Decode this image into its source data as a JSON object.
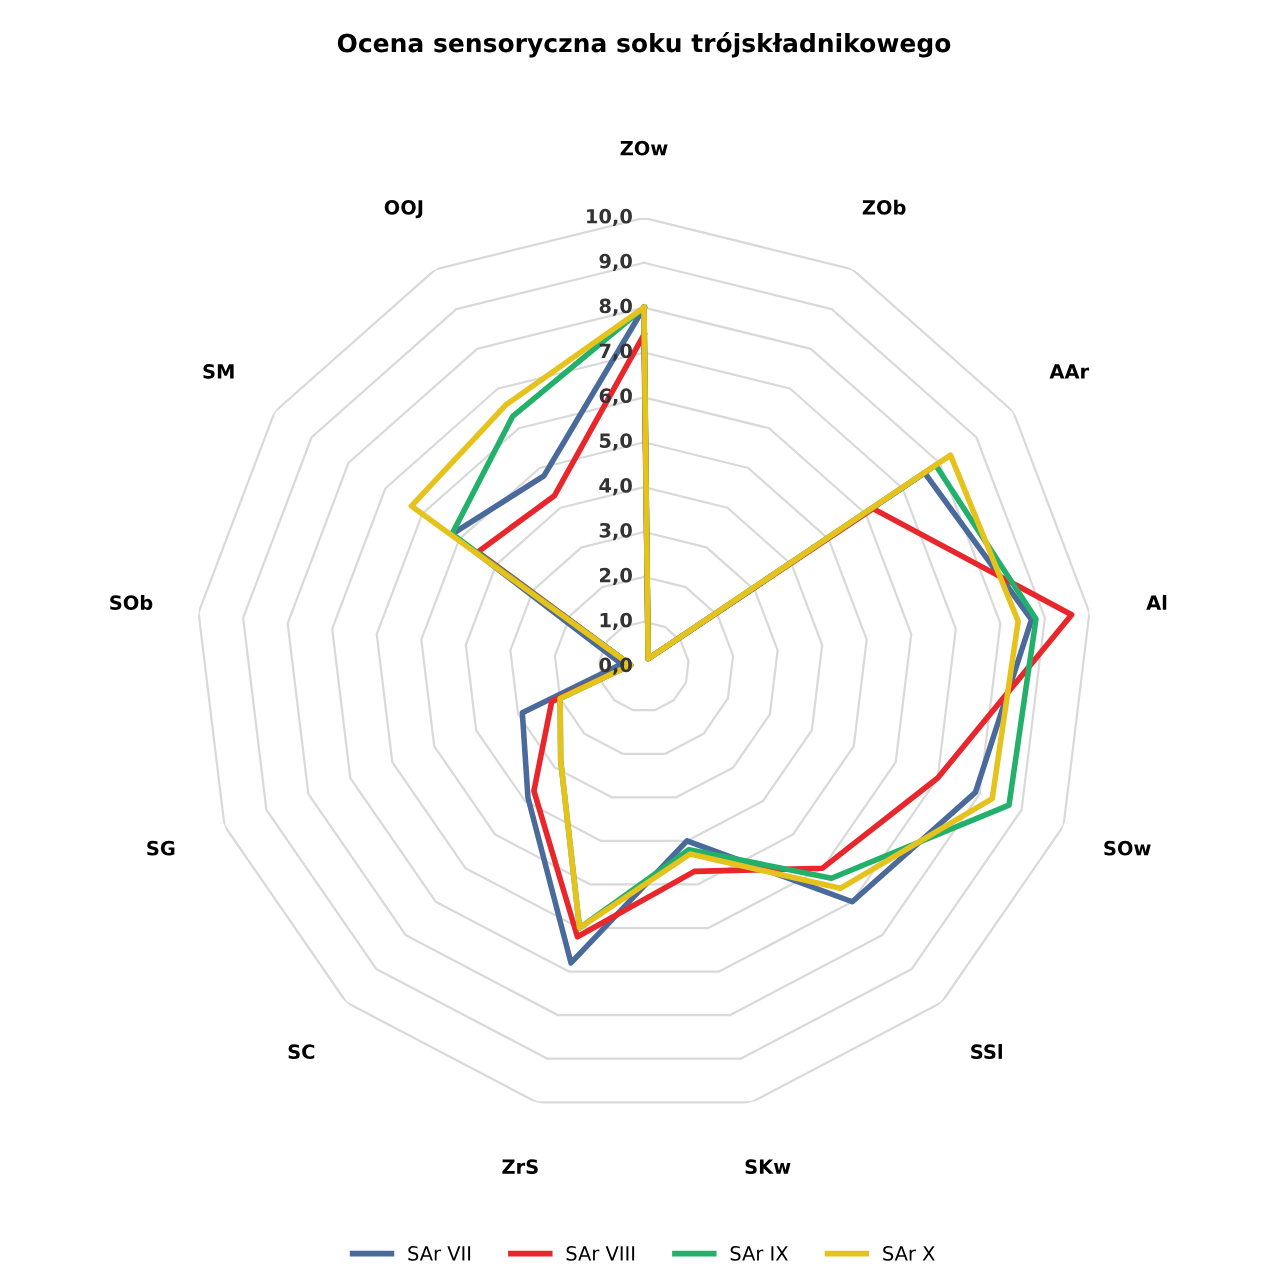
{
  "chart_data": {
    "type": "radar",
    "title": "Ocena sensoryczna soku trójskładnikowego",
    "categories": [
      "ZOw",
      "ZOb",
      "AAr",
      "Al",
      "SOw",
      "SSl",
      "SKw",
      "ZrS",
      "SC",
      "SG",
      "SOb",
      "SM",
      "OOJ"
    ],
    "ylim": [
      0,
      10
    ],
    "yticks": [
      {
        "value": 0,
        "label": "0,0"
      },
      {
        "value": 1,
        "label": "1,0"
      },
      {
        "value": 2,
        "label": "2,0"
      },
      {
        "value": 3,
        "label": "3,0"
      },
      {
        "value": 4,
        "label": "4,0"
      },
      {
        "value": 5,
        "label": "5,0"
      },
      {
        "value": 6,
        "label": "6,0"
      },
      {
        "value": 7,
        "label": "7,0"
      },
      {
        "value": 8,
        "label": "8,0"
      },
      {
        "value": 9,
        "label": "9,0"
      },
      {
        "value": 10,
        "label": "10,0"
      }
    ],
    "grid": true,
    "legend": "bottom",
    "marker": "none",
    "line_style": "solid",
    "series": [
      {
        "name": "SAr VII",
        "color": "#4a6a9c",
        "values": [
          8.0,
          0.2,
          7.6,
          8.7,
          7.9,
          7.0,
          4.0,
          6.8,
          3.9,
          2.9,
          0.5,
          5.2,
          4.8
        ]
      },
      {
        "name": "SAr VIII",
        "color": "#e8262c",
        "values": [
          7.4,
          0.2,
          6.2,
          9.6,
          7.0,
          6.0,
          4.7,
          6.2,
          3.7,
          2.2,
          0.3,
          4.5,
          4.3
        ]
      },
      {
        "name": "SAr IX",
        "color": "#22b06a",
        "values": [
          8.0,
          0.2,
          7.9,
          8.8,
          8.7,
          6.3,
          4.2,
          6.0,
          2.8,
          2.0,
          0.3,
          5.2,
          6.3
        ]
      },
      {
        "name": "SAr X",
        "color": "#e6c21c",
        "values": [
          8.0,
          0.2,
          8.3,
          8.4,
          8.3,
          6.6,
          4.3,
          6.0,
          2.8,
          2.0,
          0.3,
          6.3,
          6.6
        ]
      }
    ]
  }
}
